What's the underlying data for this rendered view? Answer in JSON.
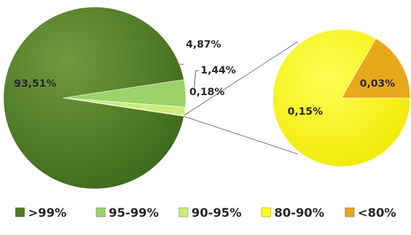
{
  "chart_data": {
    "type": "pie-of-pie",
    "title": "",
    "main_pie": {
      "slices": [
        {
          "label": "93,51%",
          "value": 93.51,
          "series": ">99%",
          "color": "#4f7a25"
        },
        {
          "label": "4,87%",
          "value": 4.87,
          "series": "95-99%",
          "color": "#9cd26a"
        },
        {
          "label": "1,44%",
          "value": 1.44,
          "series": "90-95%",
          "color": "#c9ee7a"
        },
        {
          "label": "0,18%",
          "value": 0.18,
          "series": "80-90% + <80%",
          "color": "#f2e24a"
        }
      ]
    },
    "secondary_pie": {
      "slices": [
        {
          "label": "0,15%",
          "value": 0.15,
          "series": "80-90%",
          "color": "#ffff22"
        },
        {
          "label": "0,03%",
          "value": 0.03,
          "series": "<80%",
          "color": "#e8a81c"
        }
      ]
    },
    "legend": {
      "position": "bottom",
      "items": [
        {
          "label": ">99%",
          "color": "#4f7a25"
        },
        {
          "label": "95-99%",
          "color": "#9cd26a"
        },
        {
          "label": "90-95%",
          "color": "#c9ee7a"
        },
        {
          "label": "80-90%",
          "color": "#ffff22"
        },
        {
          "label": "<80%",
          "color": "#e8a81c"
        }
      ]
    }
  }
}
